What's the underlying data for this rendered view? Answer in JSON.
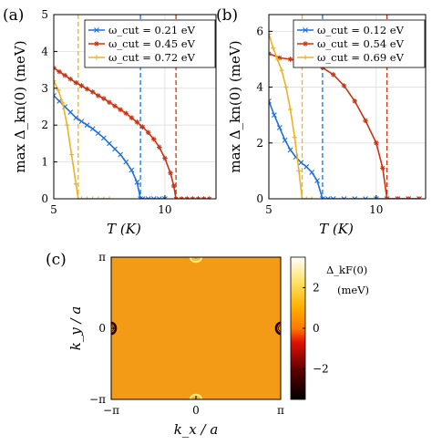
{
  "chart_data": [
    {
      "panel": "(a)",
      "type": "line",
      "xlabel": "T (K)",
      "ylabel": "max Δ_kn(0) (meV)",
      "xlim": [
        5,
        12.3
      ],
      "ylim": [
        0,
        5
      ],
      "xticks": [
        "5",
        "10"
      ],
      "yticks": [
        "0",
        "1",
        "2",
        "3",
        "4",
        "5"
      ],
      "grid": true,
      "legend_position": "top-right",
      "legend": [
        "ω_cut = 0.21 eV",
        "ω_cut = 0.45 eV",
        "ω_cut = 0.72 eV"
      ],
      "colors": [
        "#1f6fe0",
        "#cc3311",
        "#f0b020"
      ],
      "critical_T": [
        8.9,
        10.5,
        6.1
      ],
      "series": [
        {
          "name": "ω_cut = 0.21 eV",
          "color": "#1f6fe0",
          "x": [
            5.0,
            5.25,
            5.5,
            5.75,
            6.0,
            6.25,
            6.5,
            6.75,
            7.0,
            7.25,
            7.5,
            7.75,
            8.0,
            8.25,
            8.5,
            8.75,
            8.9,
            9.0,
            9.25,
            9.5,
            9.75,
            10.0
          ],
          "y": [
            2.8,
            2.65,
            2.5,
            2.35,
            2.2,
            2.1,
            2.0,
            1.9,
            1.78,
            1.65,
            1.5,
            1.35,
            1.2,
            1.0,
            0.78,
            0.45,
            0.0,
            0.0,
            0.0,
            0.0,
            0.0,
            0.0
          ]
        },
        {
          "name": "ω_cut = 0.45 eV",
          "color": "#cc3311",
          "x": [
            5.0,
            5.25,
            5.5,
            5.75,
            6.0,
            6.25,
            6.5,
            6.75,
            7.0,
            7.25,
            7.5,
            7.75,
            8.0,
            8.25,
            8.5,
            8.75,
            9.0,
            9.25,
            9.5,
            9.75,
            10.0,
            10.25,
            10.4,
            10.5,
            10.75,
            11.0,
            11.25,
            11.5,
            11.75,
            12.0
          ],
          "y": [
            3.55,
            3.45,
            3.35,
            3.25,
            3.15,
            3.07,
            2.98,
            2.9,
            2.8,
            2.72,
            2.62,
            2.52,
            2.42,
            2.32,
            2.2,
            2.08,
            1.95,
            1.8,
            1.62,
            1.4,
            1.1,
            0.7,
            0.35,
            0.0,
            0.0,
            0.0,
            0.0,
            0.0,
            0.0,
            0.0
          ]
        },
        {
          "name": "ω_cut = 0.72 eV",
          "color": "#f0b020",
          "x": [
            5.0,
            5.2,
            5.4,
            5.6,
            5.8,
            6.0,
            6.1,
            6.25,
            6.5,
            6.75,
            7.0,
            7.25,
            7.5
          ],
          "y": [
            3.2,
            2.95,
            2.6,
            2.0,
            1.2,
            0.4,
            0.0,
            0.0,
            0.0,
            0.0,
            0.0,
            0.0,
            0.0
          ]
        }
      ]
    },
    {
      "panel": "(b)",
      "type": "line",
      "xlabel": "T (K)",
      "ylabel": "max Δ_kn(0) (meV)",
      "xlim": [
        5,
        12.3
      ],
      "ylim": [
        0,
        6.6
      ],
      "xticks": [
        "5",
        "10"
      ],
      "yticks": [
        "0",
        "2",
        "4",
        "6"
      ],
      "grid": true,
      "legend_position": "top-right",
      "legend": [
        "ω_cut = 0.12 eV",
        "ω_cut = 0.54 eV",
        "ω_cut = 0.69 eV"
      ],
      "colors": [
        "#1f6fe0",
        "#cc3311",
        "#f0b020"
      ],
      "critical_T": [
        7.5,
        10.5,
        6.55
      ],
      "series": [
        {
          "name": "ω_cut = 0.12 eV",
          "color": "#1f6fe0",
          "x": [
            5.0,
            5.25,
            5.5,
            5.75,
            6.0,
            6.25,
            6.5,
            6.75,
            7.0,
            7.25,
            7.5,
            7.75,
            8.0,
            8.5,
            9.0,
            9.5,
            10.0,
            10.5,
            11.0,
            11.5,
            12.0
          ],
          "y": [
            3.5,
            3.0,
            2.55,
            2.1,
            1.75,
            1.5,
            1.3,
            1.15,
            0.95,
            0.65,
            0.0,
            0.0,
            0.0,
            0.0,
            0.0,
            0.0,
            0.0,
            0.0,
            0.0,
            0.0,
            0.0
          ]
        },
        {
          "name": "ω_cut = 0.54 eV",
          "color": "#cc3311",
          "x": [
            5.0,
            5.5,
            6.0,
            6.5,
            7.0,
            7.5,
            8.0,
            8.5,
            9.0,
            9.5,
            10.0,
            10.3,
            10.5,
            11.0,
            11.5,
            12.0
          ],
          "y": [
            5.2,
            5.05,
            5.0,
            4.95,
            4.85,
            4.7,
            4.45,
            4.05,
            3.5,
            2.8,
            2.0,
            1.1,
            0.0,
            0.0,
            0.0,
            0.0
          ]
        },
        {
          "name": "ω_cut = 0.69 eV",
          "color": "#f0b020",
          "x": [
            5.0,
            5.2,
            5.4,
            5.6,
            5.8,
            6.0,
            6.2,
            6.4,
            6.55,
            6.75,
            7.0
          ],
          "y": [
            5.9,
            5.4,
            5.0,
            4.6,
            4.0,
            3.2,
            2.2,
            1.0,
            0.0,
            0.0,
            0.0
          ]
        }
      ]
    },
    {
      "panel": "(c)",
      "type": "heatmap",
      "xlabel": "k_x / a",
      "ylabel": "k_y / a",
      "xticks": [
        "−π",
        "0",
        "π"
      ],
      "yticks": [
        "−π",
        "0",
        "π"
      ],
      "colorbar_label": "Δ_kF(0)",
      "colorbar_unit": "(meV)",
      "colorbar_ticks": [
        "2",
        "0",
        "−2"
      ],
      "colorbar_range": [
        -3.5,
        3.5
      ],
      "background_value": 0.3,
      "features": [
        {
          "kx": 0,
          "ky": 3.14159,
          "sign": "positive",
          "value": 2.2
        },
        {
          "kx": 0,
          "ky": -3.14159,
          "sign": "positive",
          "value": 2.2
        },
        {
          "kx": -3.14159,
          "ky": 0,
          "sign": "negative",
          "value": -3.3
        },
        {
          "kx": 3.14159,
          "ky": 0,
          "sign": "negative",
          "value": -3.3
        }
      ]
    }
  ]
}
